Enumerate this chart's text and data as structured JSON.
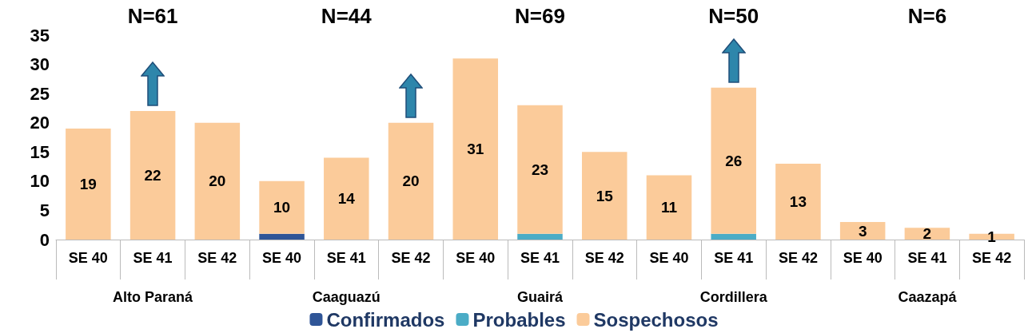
{
  "chart_data": {
    "type": "bar",
    "stacked": true,
    "categories": [
      "SE 40",
      "SE 41",
      "SE 42",
      "SE 40",
      "SE 41",
      "SE 42",
      "SE 40",
      "SE 41",
      "SE 42",
      "SE 40",
      "SE 41",
      "SE 42",
      "SE 40",
      "SE 41",
      "SE 42"
    ],
    "series": [
      {
        "name": "Confirmados",
        "color": "#2f5597",
        "values": [
          null,
          null,
          null,
          1,
          null,
          null,
          null,
          null,
          null,
          null,
          null,
          null,
          null,
          null,
          null
        ]
      },
      {
        "name": "Probables",
        "color": "#4bacc6",
        "values": [
          null,
          null,
          null,
          null,
          null,
          null,
          null,
          1,
          null,
          null,
          1,
          null,
          null,
          null,
          null
        ]
      },
      {
        "name": "Sospechosos",
        "color": "#fbcb9a",
        "values": [
          19,
          22,
          20,
          9,
          14,
          20,
          31,
          22,
          15,
          11,
          25,
          13,
          3,
          2,
          1
        ]
      }
    ],
    "totals": [
      "19",
      "22",
      "20",
      "10",
      "14",
      "20",
      "31",
      "23",
      "15",
      "11",
      "26",
      "13",
      "3",
      "2",
      "1"
    ],
    "annotations": [
      "Alto Paraná",
      "Caaguazú",
      "Guairá",
      "Cordillera",
      "Caazapá",
      "N=61",
      "N=44",
      "N=69",
      "N=50",
      "N=6"
    ],
    "ylim": [
      0,
      35
    ],
    "yticks": [
      0,
      5,
      10,
      15,
      20,
      25,
      30,
      35
    ],
    "grid": false,
    "legend": "bottom"
  }
}
